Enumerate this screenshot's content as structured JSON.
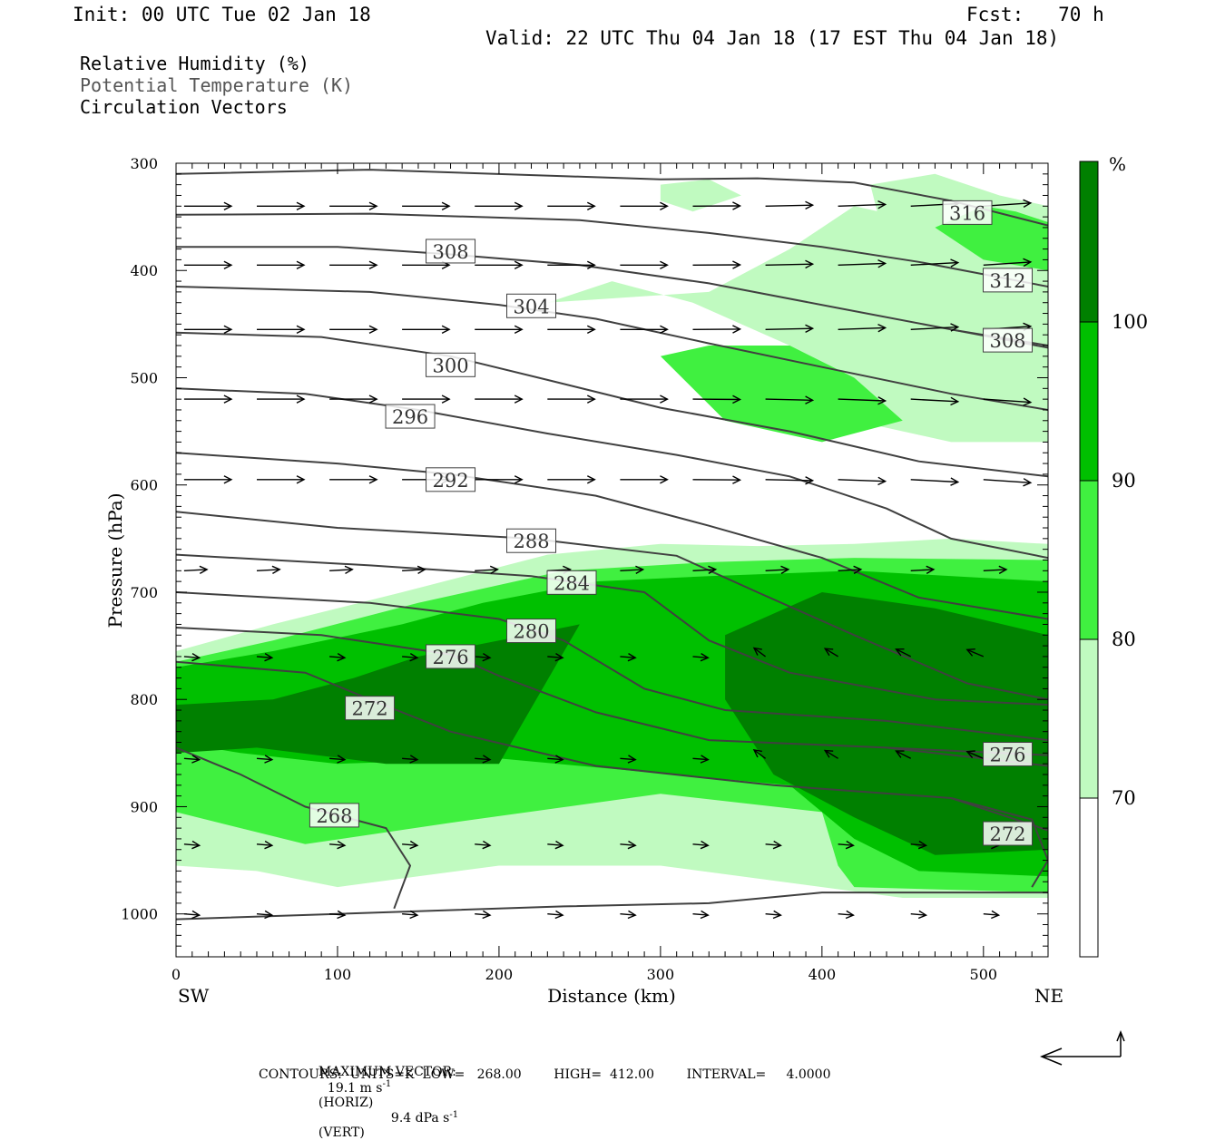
{
  "header": {
    "init": "Init: 00 UTC Tue 02 Jan 18",
    "fcst": "Fcst:   70 h",
    "valid": "Valid: 22 UTC Thu 04 Jan 18 (17 EST Thu 04 Jan 18)"
  },
  "fields": [
    "Relative Humidity (%)",
    "Potential Temperature (K)",
    "Circulation Vectors"
  ],
  "colors": {
    "rh_70_80": "#c0fac0",
    "rh_80_90": "#40f040",
    "rh_90_100": "#00c000",
    "rh_100": "#008000",
    "contour": "#404040",
    "vector": "#000000"
  },
  "footer": {
    "max_vector_label": "MAXIMUM VECTOR:",
    "max_horiz": "19.1 m s",
    "horiz_tag": "(HORIZ)",
    "max_vert": "9.4 dPa s",
    "vert_tag": "(VERT)",
    "exp": "-1",
    "contours": "CONTOURS:  UNITS=K  LOW=   268.00        HIGH=  412.00        INTERVAL=     4.0000"
  },
  "chart_data": {
    "type": "cross-section",
    "xlabel": "Distance (km)",
    "ylabel": "Pressure (hPa)",
    "x_end_labels": {
      "left": "SW",
      "right": "NE"
    },
    "xlim": [
      0,
      540
    ],
    "ylim": [
      1040,
      300
    ],
    "xticks": [
      0,
      100,
      200,
      300,
      400,
      500
    ],
    "yticks": [
      300,
      400,
      500,
      600,
      700,
      800,
      900,
      1000
    ],
    "colorbar": {
      "unit": "%",
      "levels": [
        70,
        80,
        90,
        100
      ]
    },
    "rh_regions": [
      {
        "level": 70,
        "points": [
          [
            0,
            755
          ],
          [
            60,
            730
          ],
          [
            140,
            700
          ],
          [
            230,
            665
          ],
          [
            300,
            655
          ],
          [
            360,
            657
          ],
          [
            420,
            655
          ],
          [
            480,
            650
          ],
          [
            540,
            655
          ],
          [
            540,
            985
          ],
          [
            450,
            985
          ],
          [
            400,
            975
          ],
          [
            300,
            955
          ],
          [
            200,
            955
          ],
          [
            150,
            965
          ],
          [
            100,
            975
          ],
          [
            50,
            960
          ],
          [
            0,
            955
          ]
        ]
      },
      {
        "level": 80,
        "points": [
          [
            0,
            765
          ],
          [
            60,
            745
          ],
          [
            150,
            710
          ],
          [
            240,
            680
          ],
          [
            330,
            672
          ],
          [
            420,
            668
          ],
          [
            540,
            670
          ],
          [
            540,
            980
          ],
          [
            420,
            975
          ],
          [
            410,
            955
          ],
          [
            400,
            905
          ],
          [
            300,
            888
          ],
          [
            170,
            915
          ],
          [
            80,
            935
          ],
          [
            0,
            905
          ]
        ]
      },
      {
        "level": 90,
        "points": [
          [
            0,
            770
          ],
          [
            60,
            755
          ],
          [
            140,
            730
          ],
          [
            190,
            710
          ],
          [
            260,
            690
          ],
          [
            330,
            685
          ],
          [
            420,
            680
          ],
          [
            540,
            690
          ],
          [
            540,
            965
          ],
          [
            460,
            960
          ],
          [
            420,
            930
          ],
          [
            380,
            880
          ],
          [
            200,
            855
          ],
          [
            100,
            860
          ],
          [
            40,
            850
          ],
          [
            0,
            840
          ]
        ]
      },
      {
        "level": 100,
        "points": [
          [
            0,
            805
          ],
          [
            60,
            800
          ],
          [
            110,
            780
          ],
          [
            150,
            760
          ],
          [
            200,
            745
          ],
          [
            250,
            730
          ],
          [
            200,
            860
          ],
          [
            130,
            860
          ],
          [
            50,
            845
          ],
          [
            0,
            850
          ]
        ]
      },
      {
        "level": 100,
        "points": [
          [
            340,
            740
          ],
          [
            400,
            700
          ],
          [
            470,
            715
          ],
          [
            540,
            740
          ],
          [
            540,
            940
          ],
          [
            470,
            945
          ],
          [
            420,
            910
          ],
          [
            370,
            870
          ],
          [
            340,
            800
          ]
        ]
      },
      {
        "level": 70,
        "points": [
          [
            230,
            430
          ],
          [
            270,
            410
          ],
          [
            320,
            430
          ],
          [
            380,
            470
          ],
          [
            420,
            540
          ],
          [
            480,
            560
          ],
          [
            540,
            560
          ],
          [
            540,
            420
          ],
          [
            520,
            380
          ],
          [
            480,
            360
          ],
          [
            420,
            340
          ],
          [
            380,
            380
          ],
          [
            330,
            420
          ]
        ]
      },
      {
        "level": 80,
        "points": [
          [
            300,
            480
          ],
          [
            330,
            470
          ],
          [
            380,
            470
          ],
          [
            420,
            500
          ],
          [
            450,
            540
          ],
          [
            400,
            560
          ],
          [
            340,
            540
          ]
        ]
      },
      {
        "level": 70,
        "points": [
          [
            430,
            320
          ],
          [
            470,
            310
          ],
          [
            510,
            330
          ],
          [
            540,
            340
          ],
          [
            540,
            560
          ],
          [
            490,
            500
          ],
          [
            460,
            420
          ],
          [
            440,
            380
          ]
        ]
      },
      {
        "level": 80,
        "points": [
          [
            470,
            360
          ],
          [
            500,
            340
          ],
          [
            520,
            345
          ],
          [
            540,
            355
          ],
          [
            540,
            400
          ],
          [
            500,
            390
          ]
        ]
      },
      {
        "level": 70,
        "points": [
          [
            300,
            320
          ],
          [
            330,
            315
          ],
          [
            350,
            330
          ],
          [
            320,
            345
          ],
          [
            300,
            335
          ]
        ]
      }
    ],
    "isentropes": [
      {
        "k": 316,
        "points": [
          [
            0,
            310
          ],
          [
            120,
            306
          ],
          [
            240,
            312
          ],
          [
            300,
            315
          ],
          [
            360,
            314
          ],
          [
            420,
            318
          ],
          [
            480,
            335
          ],
          [
            540,
            358
          ]
        ],
        "label_at": [
          490,
          346
        ]
      },
      {
        "k": 312,
        "points": [
          [
            0,
            348
          ],
          [
            120,
            347
          ],
          [
            250,
            353
          ],
          [
            330,
            365
          ],
          [
            400,
            378
          ],
          [
            460,
            392
          ],
          [
            540,
            415
          ]
        ],
        "label_at": [
          515,
          409
        ]
      },
      {
        "k": 308,
        "points": [
          [
            0,
            378
          ],
          [
            100,
            378
          ],
          [
            170,
            385
          ],
          [
            250,
            395
          ],
          [
            330,
            412
          ],
          [
            410,
            435
          ],
          [
            480,
            455
          ],
          [
            540,
            470
          ]
        ],
        "label_at": [
          170,
          382
        ]
      },
      {
        "k": 308,
        "points": [
          [
            480,
            455
          ],
          [
            540,
            472
          ]
        ],
        "label_at": [
          515,
          465
        ]
      },
      {
        "k": 304,
        "points": [
          [
            0,
            415
          ],
          [
            120,
            420
          ],
          [
            200,
            432
          ],
          [
            260,
            445
          ],
          [
            330,
            468
          ],
          [
            400,
            490
          ],
          [
            480,
            515
          ],
          [
            540,
            530
          ]
        ],
        "label_at": [
          220,
          433
        ]
      },
      {
        "k": 300,
        "points": [
          [
            0,
            458
          ],
          [
            90,
            462
          ],
          [
            170,
            480
          ],
          [
            230,
            502
          ],
          [
            300,
            528
          ],
          [
            380,
            550
          ],
          [
            460,
            578
          ],
          [
            540,
            592
          ]
        ],
        "label_at": [
          170,
          488
        ]
      },
      {
        "k": 296,
        "points": [
          [
            0,
            510
          ],
          [
            80,
            515
          ],
          [
            150,
            530
          ],
          [
            230,
            552
          ],
          [
            310,
            572
          ],
          [
            380,
            592
          ],
          [
            440,
            622
          ],
          [
            480,
            650
          ],
          [
            540,
            668
          ]
        ],
        "label_at": [
          145,
          536
        ]
      },
      {
        "k": 292,
        "points": [
          [
            0,
            570
          ],
          [
            100,
            580
          ],
          [
            170,
            590
          ],
          [
            260,
            610
          ],
          [
            330,
            638
          ],
          [
            400,
            668
          ],
          [
            460,
            705
          ],
          [
            540,
            725
          ]
        ],
        "label_at": [
          170,
          595
        ]
      },
      {
        "k": 288,
        "points": [
          [
            0,
            625
          ],
          [
            100,
            640
          ],
          [
            220,
            650
          ],
          [
            310,
            666
          ],
          [
            360,
            700
          ],
          [
            420,
            740
          ],
          [
            490,
            785
          ],
          [
            540,
            800
          ]
        ],
        "label_at": [
          220,
          652
        ]
      },
      {
        "k": 284,
        "points": [
          [
            0,
            665
          ],
          [
            120,
            675
          ],
          [
            220,
            685
          ],
          [
            290,
            700
          ],
          [
            330,
            745
          ],
          [
            380,
            775
          ],
          [
            470,
            800
          ],
          [
            540,
            805
          ]
        ],
        "label_at": [
          245,
          691
        ]
      },
      {
        "k": 280,
        "points": [
          [
            0,
            700
          ],
          [
            120,
            710
          ],
          [
            200,
            725
          ],
          [
            240,
            745
          ],
          [
            290,
            790
          ],
          [
            340,
            810
          ],
          [
            440,
            820
          ],
          [
            540,
            838
          ]
        ],
        "label_at": [
          220,
          736
        ]
      },
      {
        "k": 276,
        "points": [
          [
            0,
            733
          ],
          [
            90,
            740
          ],
          [
            170,
            758
          ],
          [
            200,
            778
          ],
          [
            260,
            812
          ],
          [
            330,
            838
          ],
          [
            440,
            845
          ],
          [
            540,
            852
          ]
        ],
        "label_at": [
          170,
          760
        ]
      },
      {
        "k": 276,
        "points": [
          [
            440,
            845
          ],
          [
            540,
            862
          ]
        ],
        "label_at": [
          515,
          851
        ]
      },
      {
        "k": 272,
        "points": [
          [
            0,
            765
          ],
          [
            80,
            775
          ],
          [
            120,
            800
          ],
          [
            170,
            830
          ],
          [
            260,
            862
          ],
          [
            370,
            880
          ],
          [
            480,
            892
          ],
          [
            540,
            922
          ]
        ],
        "label_at": [
          120,
          808
        ]
      },
      {
        "k": 272,
        "points": [
          [
            480,
            892
          ],
          [
            530,
            912
          ],
          [
            540,
            950
          ],
          [
            530,
            975
          ]
        ],
        "label_at": [
          515,
          925
        ]
      },
      {
        "k": 268,
        "points": [
          [
            0,
            845
          ],
          [
            40,
            870
          ],
          [
            80,
            900
          ],
          [
            130,
            920
          ],
          [
            145,
            955
          ],
          [
            135,
            995
          ]
        ],
        "label_at": [
          98,
          908
        ]
      },
      {
        "k": 268,
        "points": [
          [
            0,
            1005
          ],
          [
            100,
            1000
          ],
          [
            240,
            993
          ],
          [
            330,
            990
          ],
          [
            400,
            980
          ],
          [
            540,
            980
          ]
        ],
        "label_at": null
      }
    ]
  }
}
